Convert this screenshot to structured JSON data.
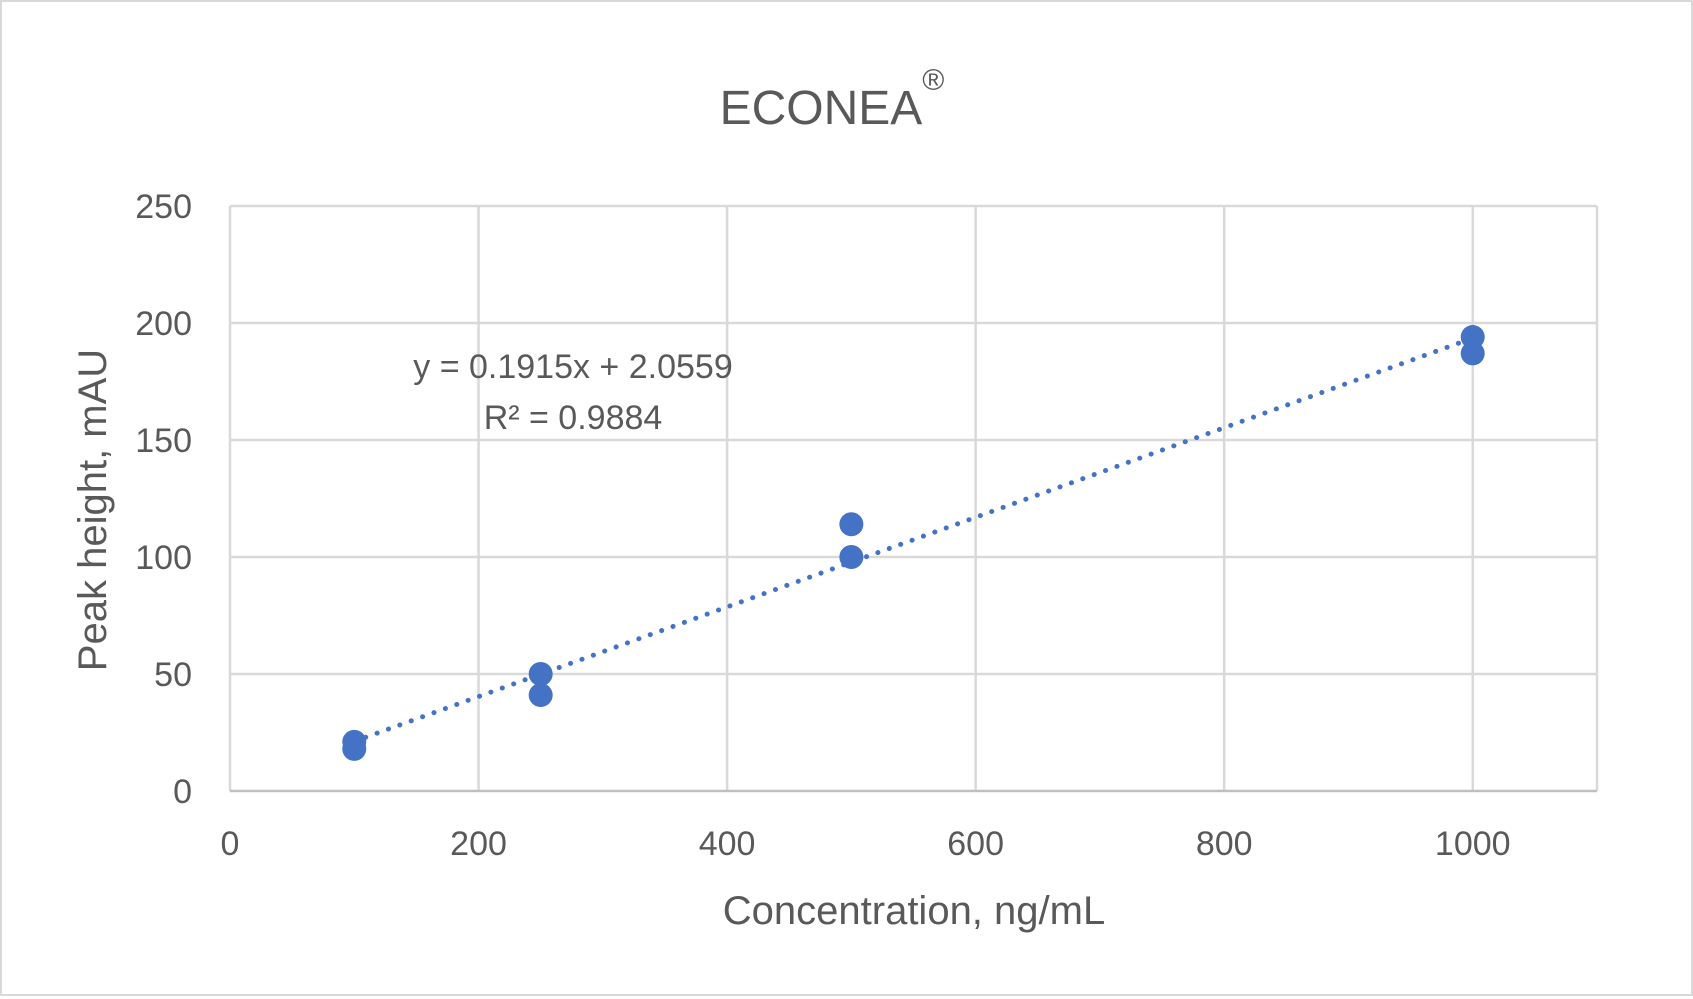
{
  "chart_data": {
    "type": "scatter",
    "title": "ECONEA",
    "title_superscript": "®",
    "xlabel": "Concentration, ng/mL",
    "ylabel": "Peak height, mAU",
    "xlim": [
      0,
      1100
    ],
    "ylim": [
      0,
      250
    ],
    "x_ticks": [
      0,
      200,
      400,
      600,
      800,
      1000
    ],
    "y_ticks": [
      0,
      50,
      100,
      150,
      200,
      250
    ],
    "x_tick_labels": [
      "0",
      "200",
      "400",
      "600",
      "800",
      "1000"
    ],
    "y_tick_labels": [
      "0",
      "50",
      "100",
      "150",
      "200",
      "250"
    ],
    "grid": true,
    "legend": "none",
    "series": [
      {
        "color": "#4472c4",
        "points": [
          {
            "x": 100,
            "y": 21
          },
          {
            "x": 100,
            "y": 18
          },
          {
            "x": 250,
            "y": 50
          },
          {
            "x": 250,
            "y": 41
          },
          {
            "x": 500,
            "y": 114
          },
          {
            "x": 500,
            "y": 100
          },
          {
            "x": 1000,
            "y": 194
          },
          {
            "x": 1000,
            "y": 187
          }
        ]
      }
    ],
    "trendline": {
      "type": "linear",
      "slope": 0.1915,
      "intercept": 2.0559,
      "x_range": [
        100,
        1000
      ],
      "color": "#4472c4",
      "style": "dotted",
      "equation_text": "y = 0.1915x + 2.0559",
      "r2_text": "R² = 0.9884"
    },
    "colors": {
      "grid": "#d9d9d9",
      "axis": "#bfbfbf",
      "text": "#595959"
    }
  }
}
